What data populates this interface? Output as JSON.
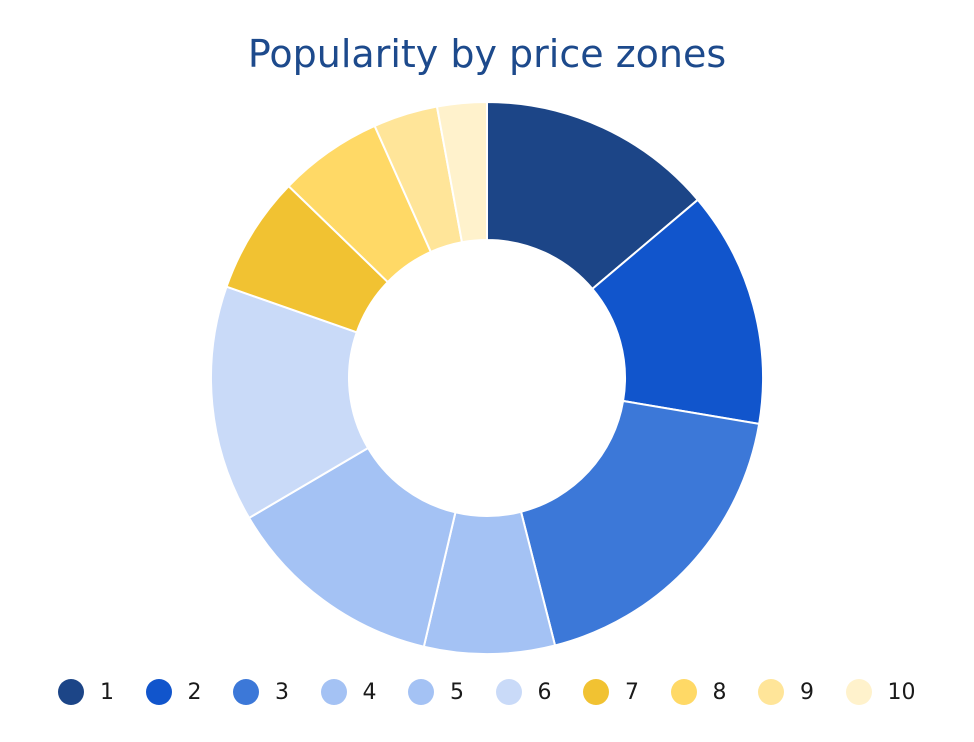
{
  "chart_data": {
    "type": "pie",
    "hole": 0.5,
    "title": "Popularity by price zones",
    "categories": [
      "1",
      "2",
      "3",
      "4",
      "5",
      "6",
      "7",
      "8",
      "9",
      "10"
    ],
    "values": [
      14.3,
      14.3,
      19.0,
      7.9,
      13.3,
      14.3,
      7.1,
      6.3,
      3.9,
      3.0
    ],
    "colors": [
      "#1c4587",
      "#1155cc",
      "#3c78d8",
      "#a4c2f4",
      "#a4c2f4",
      "#c9daf8",
      "#f1c232",
      "#ffd966",
      "#ffe599",
      "#fff2cc"
    ],
    "legend_position": "bottom",
    "direction": "clockwise"
  }
}
